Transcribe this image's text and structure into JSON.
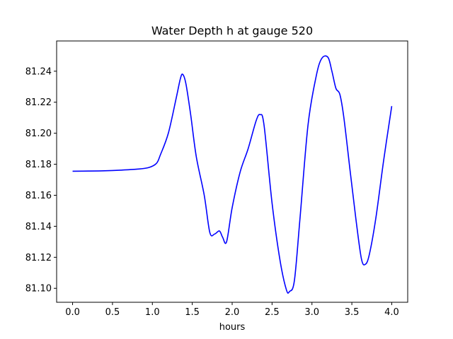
{
  "chart_data": {
    "type": "line",
    "title": "Water Depth h at gauge 520",
    "xlabel": "hours",
    "ylabel": "",
    "xlim": [
      -0.2,
      4.2
    ],
    "ylim": [
      81.091,
      81.2595
    ],
    "x_ticks": [
      0.0,
      0.5,
      1.0,
      1.5,
      2.0,
      2.5,
      3.0,
      3.5,
      4.0
    ],
    "x_tick_labels": [
      "0.0",
      "0.5",
      "1.0",
      "1.5",
      "2.0",
      "2.5",
      "3.0",
      "3.5",
      "4.0"
    ],
    "y_ticks": [
      81.1,
      81.12,
      81.14,
      81.16,
      81.18,
      81.2,
      81.22,
      81.24
    ],
    "y_tick_labels": [
      "81.10",
      "81.12",
      "81.14",
      "81.16",
      "81.18",
      "81.20",
      "81.22",
      "81.24"
    ],
    "grid": false,
    "line_color": "#0000ff",
    "series": [
      {
        "x": [
          0.0,
          0.2,
          0.4,
          0.6,
          0.8,
          0.95,
          1.05,
          1.1,
          1.2,
          1.3,
          1.35,
          1.38,
          1.42,
          1.48,
          1.55,
          1.65,
          1.72,
          1.78,
          1.84,
          1.88,
          1.93,
          2.0,
          2.1,
          2.2,
          2.3,
          2.35,
          2.4,
          2.5,
          2.6,
          2.68,
          2.72,
          2.78,
          2.85,
          2.95,
          3.05,
          3.12,
          3.2,
          3.25,
          3.3,
          3.35,
          3.4,
          3.48,
          3.55,
          3.62,
          3.67,
          3.72,
          3.8,
          3.9,
          4.0
        ],
        "y": [
          81.1755,
          81.1756,
          81.1758,
          81.1762,
          81.1768,
          81.1778,
          81.1805,
          81.186,
          81.2,
          81.223,
          81.235,
          81.238,
          81.232,
          81.212,
          81.185,
          81.16,
          81.136,
          81.135,
          81.137,
          81.133,
          81.13,
          81.152,
          81.175,
          81.19,
          81.208,
          81.212,
          81.205,
          81.155,
          81.118,
          81.099,
          81.098,
          81.105,
          81.145,
          81.205,
          81.236,
          81.248,
          81.249,
          81.24,
          81.229,
          81.225,
          81.21,
          81.175,
          81.145,
          81.119,
          81.1155,
          81.122,
          81.145,
          81.183,
          81.2175
        ]
      }
    ]
  }
}
